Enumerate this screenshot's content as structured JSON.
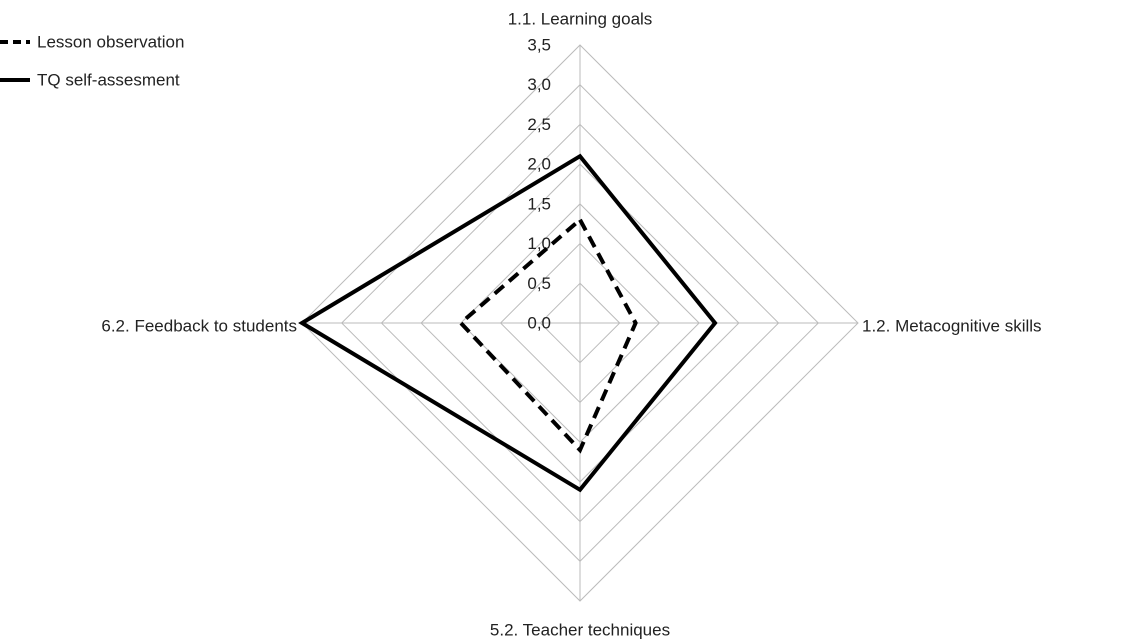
{
  "chart_data": {
    "type": "radar",
    "categories": [
      "1.1. Learning  goals",
      "1.2. Metacognitive skills",
      "5.2. Teacher  techniques",
      "6.2. Feedback to students"
    ],
    "series": [
      {
        "name": "Lesson observation",
        "color": "#000000",
        "line_style": "dashed",
        "values": [
          1.3,
          0.7,
          1.6,
          1.5
        ]
      },
      {
        "name": "TQ self-assesment",
        "color": "#000000",
        "line_style": "solid",
        "values": [
          2.1,
          1.7,
          2.1,
          3.5
        ]
      }
    ],
    "ylim": [
      0,
      3.5
    ],
    "yticks": [
      {
        "value": 0,
        "label": "0,0"
      },
      {
        "value": 0.5,
        "label": "0,5"
      },
      {
        "value": 1,
        "label": "1,0"
      },
      {
        "value": 1.5,
        "label": "1,5"
      },
      {
        "value": 2,
        "label": "2,0"
      },
      {
        "value": 2.5,
        "label": "2,5"
      },
      {
        "value": 3,
        "label": "3,0"
      },
      {
        "value": 3.5,
        "label": "3,5"
      }
    ],
    "grid": true,
    "legend": "top-left"
  }
}
